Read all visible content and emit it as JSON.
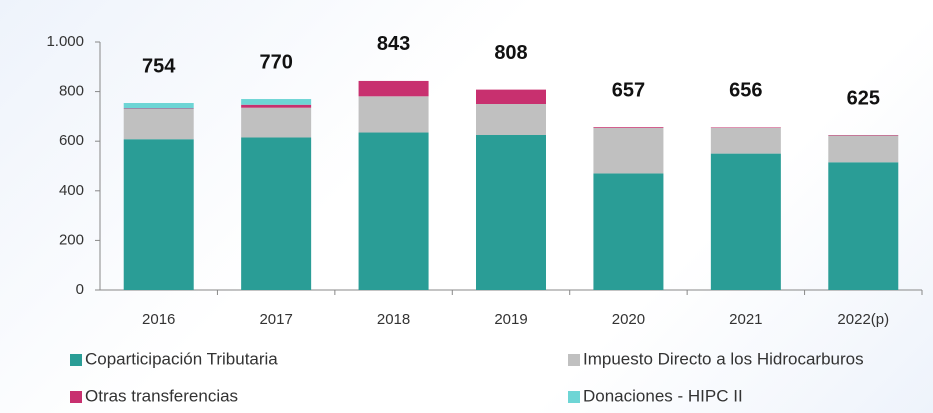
{
  "chart_data": {
    "type": "stacked_bar",
    "categories": [
      "2016",
      "2017",
      "2018",
      "2019",
      "2020",
      "2021",
      "2022(p)"
    ],
    "series": [
      {
        "name": "Coparticipación Tributaria",
        "color": "#2a9d96",
        "values": [
          608,
          615,
          635,
          625,
          470,
          550,
          515
        ]
      },
      {
        "name": "Impuesto Directo a los Hidrocarburos",
        "color": "#c0c0c0",
        "values": [
          122,
          120,
          146,
          125,
          184,
          104,
          108
        ]
      },
      {
        "name": "Otras transferencias",
        "color": "#c8306f",
        "values": [
          2,
          12,
          62,
          58,
          3,
          2,
          2
        ]
      },
      {
        "name": "Donaciones - HIPC II",
        "color": "#6dd5d5",
        "values": [
          22,
          23,
          0,
          0,
          0,
          0,
          0
        ]
      }
    ],
    "totals": [
      754,
      770,
      843,
      808,
      657,
      656,
      625
    ],
    "ylim": [
      0,
      1000
    ],
    "yticks": [
      0,
      200,
      400,
      600,
      800,
      {
        "value": 1000,
        "label": "1.000"
      }
    ],
    "grid": false
  }
}
